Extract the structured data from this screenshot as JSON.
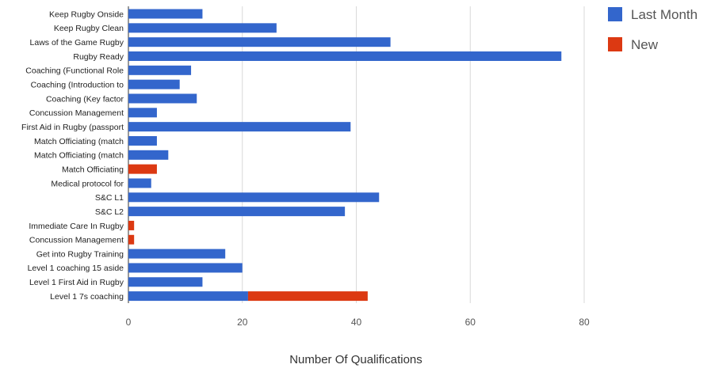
{
  "chart_data": {
    "type": "bar",
    "orientation": "horizontal",
    "stacked": true,
    "categories": [
      "Keep Rugby Onside",
      "Keep Rugby Clean",
      "Laws of the Game Rugby",
      "Rugby Ready",
      "Coaching (Functional Role",
      "Coaching (Introduction to",
      "Coaching (Key factor",
      "Concussion Management",
      "First Aid in Rugby (passport",
      "Match Officiating (match",
      "Match Officiating (match",
      "Match Officiating",
      "Medical protocol for",
      "S&C L1",
      "S&C L2",
      "Immediate Care In Rugby",
      "Concussion Management",
      "Get into Rugby Training",
      "Level 1 coaching 15 aside",
      "Level 1 First Aid in Rugby",
      "Level 1 7s coaching"
    ],
    "series": [
      {
        "name": "Last Month",
        "color": "#3366cc",
        "values": [
          13,
          26,
          46,
          76,
          11,
          9,
          12,
          5,
          39,
          5,
          7,
          0,
          4,
          44,
          38,
          0,
          0,
          17,
          20,
          13,
          21
        ]
      },
      {
        "name": "New",
        "color": "#dc3912",
        "values": [
          0,
          0,
          0,
          0,
          0,
          0,
          0,
          0,
          0,
          0,
          0,
          5,
          0,
          0,
          0,
          1,
          1,
          0,
          0,
          0,
          21
        ]
      }
    ],
    "xlabel": "Number Of Qualifications",
    "ylabel": "",
    "xlim": [
      0,
      80
    ],
    "xticks": [
      0,
      20,
      40,
      60,
      80
    ],
    "grid": true,
    "legend_position": "right"
  }
}
